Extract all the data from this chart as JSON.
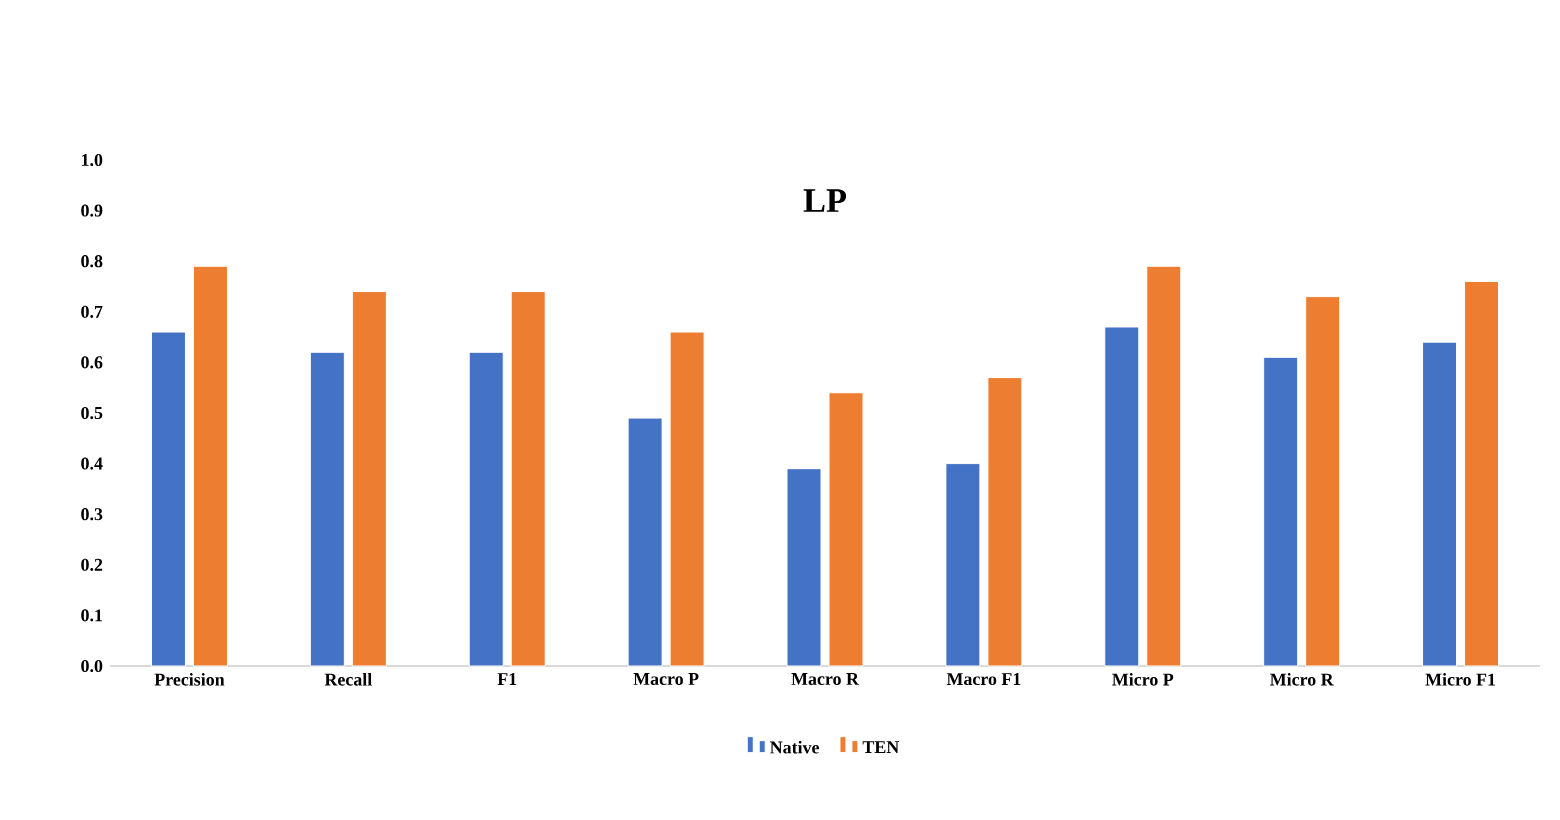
{
  "chart_data": {
    "type": "bar",
    "title": "LP",
    "categories": [
      "Precision",
      "Recall",
      "F1",
      "Macro P",
      "Macro R",
      "Macro F1",
      "Micro P",
      "Micro R",
      "Micro F1"
    ],
    "series": [
      {
        "name": "Native",
        "color": "#4472c4",
        "values": [
          0.66,
          0.62,
          0.62,
          0.49,
          0.39,
          0.4,
          0.67,
          0.61,
          0.64
        ]
      },
      {
        "name": "TEN",
        "color": "#ed7d31",
        "values": [
          0.79,
          0.74,
          0.74,
          0.66,
          0.54,
          0.57,
          0.79,
          0.73,
          0.76
        ]
      }
    ],
    "ylim": [
      0,
      1.0
    ],
    "yticks": [
      {
        "value": 0,
        "label": "0.0"
      },
      {
        "value": 0.1,
        "label": "0.1"
      },
      {
        "value": 0.2,
        "label": "0.2"
      },
      {
        "value": 0.3,
        "label": "0.3"
      },
      {
        "value": 0.4,
        "label": "0.4"
      },
      {
        "value": 0.5,
        "label": "0.5"
      },
      {
        "value": 0.6,
        "label": "0.6"
      },
      {
        "value": 0.7,
        "label": "0.7"
      },
      {
        "value": 0.8,
        "label": "0.8"
      },
      {
        "value": 0.9,
        "label": "0.9"
      },
      {
        "value": 1.0,
        "label": "1.0"
      }
    ],
    "grid": false,
    "legend": "bottom"
  }
}
